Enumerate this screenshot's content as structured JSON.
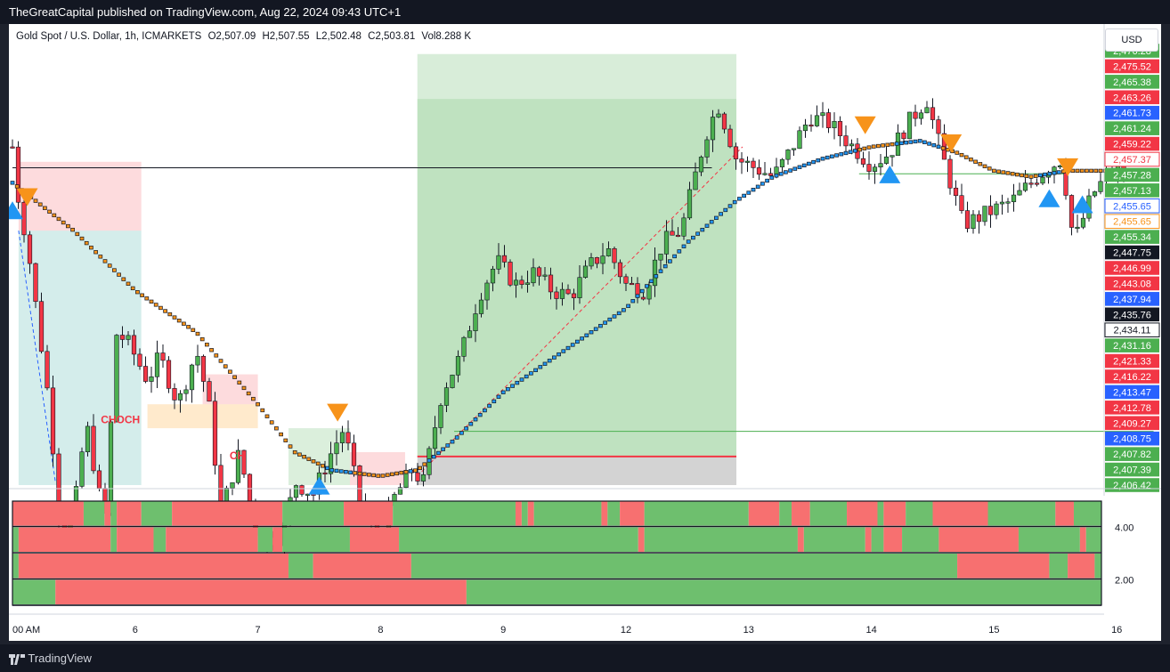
{
  "header": {
    "title": "TheGreatCapital published on TradingView.com, Aug 22, 2024 09:43 UTC+1"
  },
  "legend": {
    "symbol": "Gold Spot / U.S. Dollar, 1h, ICMARKETS",
    "open": "O2,507.09",
    "high": "H2,507.55",
    "low": "L2,502.48",
    "close": "C2,503.81",
    "volume": "Vol8.288 K"
  },
  "currency_button": "USD",
  "footer": {
    "brand": "TradingView"
  },
  "annotations": {
    "choch": "CHOCH",
    "ch": "CH"
  },
  "colors": {
    "bull": "#4caf50",
    "bear": "#f23645",
    "ma": "#131722",
    "sell_signal": "#f7931a",
    "buy_signal": "#2196f3",
    "heat_green": "#6ebf6e",
    "heat_red": "#f77070"
  },
  "chart_data": {
    "type": "candlestick",
    "y_axis_labels": [
      {
        "v": 2476.28,
        "label": "2,476.28",
        "bg": "#4caf50",
        "fg": "#ffffff"
      },
      {
        "v": 2475.52,
        "label": "2,475.52",
        "bg": "#f23645",
        "fg": "#ffffff"
      },
      {
        "v": 2465.38,
        "label": "2,465.38",
        "bg": "#4caf50",
        "fg": "#ffffff"
      },
      {
        "v": 2463.26,
        "label": "2,463.26",
        "bg": "#f23645",
        "fg": "#ffffff"
      },
      {
        "v": 2461.73,
        "label": "2,461.73",
        "bg": "#2962ff",
        "fg": "#ffffff"
      },
      {
        "v": 2461.24,
        "label": "2,461.24",
        "bg": "#4caf50",
        "fg": "#ffffff"
      },
      {
        "v": 2459.22,
        "label": "2,459.22",
        "bg": "#f23645",
        "fg": "#ffffff"
      },
      {
        "v": 2457.37,
        "label": "2,457.37",
        "bg": "#ffffff",
        "fg": "#f23645"
      },
      {
        "v": 2457.28,
        "label": "2,457.28",
        "bg": "#4caf50",
        "fg": "#ffffff"
      },
      {
        "v": 2457.13,
        "label": "2,457.13",
        "bg": "#4caf50",
        "fg": "#ffffff"
      },
      {
        "v": 2455.65,
        "label": "2,455.65",
        "bg": "#ffffff",
        "fg": "#2962ff"
      },
      {
        "v": 2455.65,
        "label": "2,455.65",
        "bg": "#ffffff",
        "fg": "#f7931a"
      },
      {
        "v": 2455.34,
        "label": "2,455.34",
        "bg": "#4caf50",
        "fg": "#ffffff"
      },
      {
        "v": 2447.75,
        "label": "2,447.75",
        "bg": "#131722",
        "fg": "#ffffff"
      },
      {
        "v": 2446.99,
        "label": "2,446.99",
        "bg": "#f23645",
        "fg": "#ffffff"
      },
      {
        "v": 2443.08,
        "label": "2,443.08",
        "bg": "#f23645",
        "fg": "#ffffff"
      },
      {
        "v": 2437.94,
        "label": "2,437.94",
        "bg": "#2962ff",
        "fg": "#ffffff"
      },
      {
        "v": 2435.76,
        "label": "2,435.76",
        "bg": "#131722",
        "fg": "#ffffff"
      },
      {
        "v": 2434.11,
        "label": "2,434.11",
        "bg": "#ffffff",
        "fg": "#131722"
      },
      {
        "v": 2431.16,
        "label": "2,431.16",
        "bg": "#4caf50",
        "fg": "#ffffff"
      },
      {
        "v": 2421.33,
        "label": "2,421.33",
        "bg": "#f23645",
        "fg": "#ffffff"
      },
      {
        "v": 2416.22,
        "label": "2,416.22",
        "bg": "#f23645",
        "fg": "#ffffff"
      },
      {
        "v": 2413.47,
        "label": "2,413.47",
        "bg": "#2962ff",
        "fg": "#ffffff"
      },
      {
        "v": 2412.78,
        "label": "2,412.78",
        "bg": "#f23645",
        "fg": "#ffffff"
      },
      {
        "v": 2409.27,
        "label": "2,409.27",
        "bg": "#f23645",
        "fg": "#ffffff"
      },
      {
        "v": 2408.75,
        "label": "2,408.75",
        "bg": "#2962ff",
        "fg": "#ffffff"
      },
      {
        "v": 2407.82,
        "label": "2,407.82",
        "bg": "#4caf50",
        "fg": "#ffffff"
      },
      {
        "v": 2407.39,
        "label": "2,407.39",
        "bg": "#4caf50",
        "fg": "#ffffff"
      },
      {
        "v": 2406.42,
        "label": "2,406.42",
        "bg": "#4caf50",
        "fg": "#ffffff"
      }
    ],
    "x_tick_labels": [
      {
        "label": "00 AM",
        "t": 0
      },
      {
        "label": "6",
        "t": 1
      },
      {
        "label": "7",
        "t": 2
      },
      {
        "label": "8",
        "t": 3
      },
      {
        "label": "9",
        "t": 4
      },
      {
        "label": "12",
        "t": 5
      },
      {
        "label": "13",
        "t": 6
      },
      {
        "label": "14",
        "t": 7
      },
      {
        "label": "15",
        "t": 8
      },
      {
        "label": "16",
        "t": 9
      }
    ],
    "price_path": [
      [
        0,
        2461
      ],
      [
        0.05,
        2452
      ],
      [
        0.12,
        2445
      ],
      [
        0.22,
        2430
      ],
      [
        0.3,
        2418
      ],
      [
        0.4,
        2395
      ],
      [
        0.5,
        2400
      ],
      [
        0.6,
        2415
      ],
      [
        0.75,
        2398
      ],
      [
        0.85,
        2430
      ],
      [
        0.95,
        2428
      ],
      [
        1.1,
        2422
      ],
      [
        1.2,
        2426
      ],
      [
        1.35,
        2418
      ],
      [
        1.5,
        2427
      ],
      [
        1.6,
        2418
      ],
      [
        1.7,
        2400
      ],
      [
        1.85,
        2410
      ],
      [
        2.0,
        2395
      ],
      [
        2.2,
        2396
      ],
      [
        2.3,
        2405
      ],
      [
        2.45,
        2403
      ],
      [
        2.6,
        2410
      ],
      [
        2.7,
        2414
      ],
      [
        2.85,
        2400
      ],
      [
        3.0,
        2395
      ],
      [
        3.1,
        2402
      ],
      [
        3.25,
        2407
      ],
      [
        3.35,
        2405
      ],
      [
        3.5,
        2420
      ],
      [
        3.65,
        2426
      ],
      [
        3.8,
        2436
      ],
      [
        3.95,
        2442
      ],
      [
        4.1,
        2438
      ],
      [
        4.25,
        2440
      ],
      [
        4.4,
        2437
      ],
      [
        4.55,
        2436
      ],
      [
        4.7,
        2441
      ],
      [
        4.85,
        2444
      ],
      [
        5.0,
        2438
      ],
      [
        5.15,
        2437
      ],
      [
        5.3,
        2445
      ],
      [
        5.45,
        2447
      ],
      [
        5.55,
        2455
      ],
      [
        5.65,
        2463
      ],
      [
        5.75,
        2468
      ],
      [
        5.82,
        2464
      ],
      [
        5.9,
        2459
      ],
      [
        6.0,
        2458
      ],
      [
        6.2,
        2456
      ],
      [
        6.3,
        2459
      ],
      [
        6.5,
        2466
      ],
      [
        6.65,
        2465
      ],
      [
        6.85,
        2461
      ],
      [
        7.0,
        2458
      ],
      [
        7.15,
        2460
      ],
      [
        7.3,
        2465
      ],
      [
        7.45,
        2469
      ],
      [
        7.6,
        2458
      ],
      [
        7.75,
        2448
      ],
      [
        7.95,
        2450
      ],
      [
        8.15,
        2452
      ],
      [
        8.35,
        2456
      ],
      [
        8.55,
        2459
      ],
      [
        8.65,
        2445
      ],
      [
        8.8,
        2453
      ],
      [
        8.95,
        2457
      ],
      [
        9.1,
        2457
      ]
    ],
    "ma_path": [
      [
        0,
        2455
      ],
      [
        0.5,
        2447
      ],
      [
        1.0,
        2437
      ],
      [
        1.5,
        2430
      ],
      [
        2.0,
        2418
      ],
      [
        2.3,
        2410
      ],
      [
        2.6,
        2407
      ],
      [
        3.0,
        2406
      ],
      [
        3.3,
        2407
      ],
      [
        3.6,
        2412
      ],
      [
        4.0,
        2420
      ],
      [
        4.5,
        2427
      ],
      [
        5.0,
        2434
      ],
      [
        5.5,
        2445
      ],
      [
        5.9,
        2452
      ],
      [
        6.2,
        2456
      ],
      [
        6.6,
        2459
      ],
      [
        7.0,
        2461
      ],
      [
        7.4,
        2462
      ],
      [
        7.7,
        2460
      ],
      [
        8.0,
        2457
      ],
      [
        8.3,
        2456
      ],
      [
        8.6,
        2457
      ],
      [
        9.1,
        2457
      ]
    ],
    "horizontal_lines": [
      {
        "v": 2457.5,
        "x0": 0,
        "x1": 5.7,
        "color": "#131722"
      },
      {
        "v": 2413.47,
        "x0": 3.6,
        "x1": 9.3,
        "color": "#4caf50"
      },
      {
        "v": 2409.27,
        "x0": 3.3,
        "x1": 5.9,
        "color": "#f23645"
      },
      {
        "v": 2456.5,
        "x0": 6.9,
        "x1": 8.6,
        "color": "#4caf50"
      }
    ],
    "zones": [
      {
        "x0": 3.3,
        "x1": 5.9,
        "v0": 2476.5,
        "v1": 2409.27,
        "color": "#4caf50",
        "opacity": 0.22
      },
      {
        "x0": 3.3,
        "x1": 5.9,
        "v0": 2469.0,
        "v1": 2409.27,
        "color": "#4caf50",
        "opacity": 0.18
      },
      {
        "x0": 3.3,
        "x1": 5.9,
        "v0": 2409.27,
        "v1": 2404.5,
        "color": "#9e9e9e",
        "opacity": 0.45
      },
      {
        "x0": 0.05,
        "x1": 1.05,
        "v0": 2458.5,
        "v1": 2447.0,
        "color": "#f23645",
        "opacity": 0.18
      },
      {
        "x0": 0.05,
        "x1": 1.05,
        "v0": 2447.0,
        "v1": 2404.5,
        "color": "#26a69a",
        "opacity": 0.2
      },
      {
        "x0": 1.55,
        "x1": 2.0,
        "v0": 2423.0,
        "v1": 2418.0,
        "color": "#f23645",
        "opacity": 0.18
      },
      {
        "x0": 1.1,
        "x1": 2.0,
        "v0": 2418.0,
        "v1": 2414.0,
        "color": "#ff9800",
        "opacity": 0.2
      },
      {
        "x0": 2.25,
        "x1": 2.75,
        "v0": 2414.0,
        "v1": 2404.5,
        "color": "#4caf50",
        "opacity": 0.2
      },
      {
        "x0": 2.75,
        "x1": 3.2,
        "v0": 2410.0,
        "v1": 2404.5,
        "color": "#f23645",
        "opacity": 0.18
      }
    ],
    "signals": [
      {
        "t": 0.12,
        "v": 2452,
        "type": "sell"
      },
      {
        "t": 0.0,
        "v": 2451,
        "type": "buy"
      },
      {
        "t": 2.65,
        "v": 2416,
        "type": "sell"
      },
      {
        "t": 2.5,
        "v": 2405,
        "type": "buy"
      },
      {
        "t": 6.95,
        "v": 2464,
        "type": "sell"
      },
      {
        "t": 7.15,
        "v": 2457,
        "type": "buy"
      },
      {
        "t": 7.65,
        "v": 2461,
        "type": "sell"
      },
      {
        "t": 8.45,
        "v": 2453,
        "type": "buy"
      },
      {
        "t": 8.6,
        "v": 2457,
        "type": "sell"
      },
      {
        "t": 8.72,
        "v": 2452,
        "type": "buy"
      }
    ],
    "heatmap_rows": [
      [
        [
          0,
          0.58,
          "r"
        ],
        [
          0.58,
          0.75,
          "g"
        ],
        [
          0.75,
          0.8,
          "r"
        ],
        [
          0.8,
          0.85,
          "g"
        ],
        [
          0.85,
          1.05,
          "r"
        ],
        [
          1.05,
          1.3,
          "g"
        ],
        [
          1.3,
          2.2,
          "r"
        ],
        [
          2.2,
          2.7,
          "g"
        ],
        [
          2.7,
          3.1,
          "r"
        ],
        [
          3.1,
          4.1,
          "g"
        ],
        [
          4.1,
          4.15,
          "r"
        ],
        [
          4.15,
          4.2,
          "g"
        ],
        [
          4.2,
          4.25,
          "r"
        ],
        [
          4.25,
          4.8,
          "g"
        ],
        [
          4.8,
          4.85,
          "r"
        ],
        [
          4.85,
          4.95,
          "g"
        ],
        [
          4.95,
          5.15,
          "r"
        ],
        [
          5.15,
          6.0,
          "g"
        ],
        [
          6.0,
          6.25,
          "r"
        ],
        [
          6.25,
          6.35,
          "g"
        ],
        [
          6.35,
          6.5,
          "r"
        ],
        [
          6.5,
          6.8,
          "g"
        ],
        [
          6.8,
          7.05,
          "r"
        ],
        [
          7.05,
          7.1,
          "g"
        ],
        [
          7.1,
          7.28,
          "r"
        ],
        [
          7.28,
          7.5,
          "g"
        ],
        [
          7.5,
          7.95,
          "r"
        ],
        [
          7.95,
          8.5,
          "g"
        ],
        [
          8.5,
          8.65,
          "r"
        ],
        [
          8.65,
          8.95,
          "g"
        ],
        [
          8.95,
          9.05,
          "r"
        ],
        [
          9.05,
          9.3,
          "g"
        ]
      ],
      [
        [
          0,
          0.05,
          "g"
        ],
        [
          0.05,
          0.8,
          "r"
        ],
        [
          0.8,
          0.85,
          "g"
        ],
        [
          0.85,
          1.15,
          "r"
        ],
        [
          1.15,
          1.25,
          "g"
        ],
        [
          1.25,
          2.0,
          "r"
        ],
        [
          2.0,
          2.12,
          "g"
        ],
        [
          2.12,
          2.2,
          "r"
        ],
        [
          2.2,
          2.75,
          "g"
        ],
        [
          2.75,
          3.15,
          "r"
        ],
        [
          3.15,
          5.1,
          "g"
        ],
        [
          5.1,
          5.15,
          "r"
        ],
        [
          5.15,
          6.4,
          "g"
        ],
        [
          6.4,
          6.45,
          "r"
        ],
        [
          6.45,
          6.95,
          "g"
        ],
        [
          6.95,
          7.0,
          "r"
        ],
        [
          7.0,
          7.1,
          "g"
        ],
        [
          7.1,
          7.25,
          "r"
        ],
        [
          7.25,
          7.55,
          "g"
        ],
        [
          7.55,
          8.2,
          "r"
        ],
        [
          8.2,
          8.7,
          "g"
        ],
        [
          8.7,
          8.75,
          "r"
        ],
        [
          8.75,
          9.3,
          "g"
        ]
      ],
      [
        [
          0,
          0.05,
          "g"
        ],
        [
          0.05,
          2.25,
          "r"
        ],
        [
          2.25,
          2.45,
          "g"
        ],
        [
          2.45,
          3.25,
          "r"
        ],
        [
          3.25,
          7.7,
          "g"
        ],
        [
          7.7,
          8.45,
          "r"
        ],
        [
          8.45,
          8.6,
          "g"
        ],
        [
          8.6,
          8.82,
          "r"
        ],
        [
          8.82,
          9.3,
          "g"
        ]
      ],
      [
        [
          0,
          0.35,
          "g"
        ],
        [
          0.35,
          3.7,
          "r"
        ],
        [
          3.7,
          9.3,
          "g"
        ]
      ]
    ],
    "indicator_axis_labels": [
      {
        "label": "4.00",
        "row": 1
      },
      {
        "label": "2.00",
        "row": 3
      }
    ]
  }
}
